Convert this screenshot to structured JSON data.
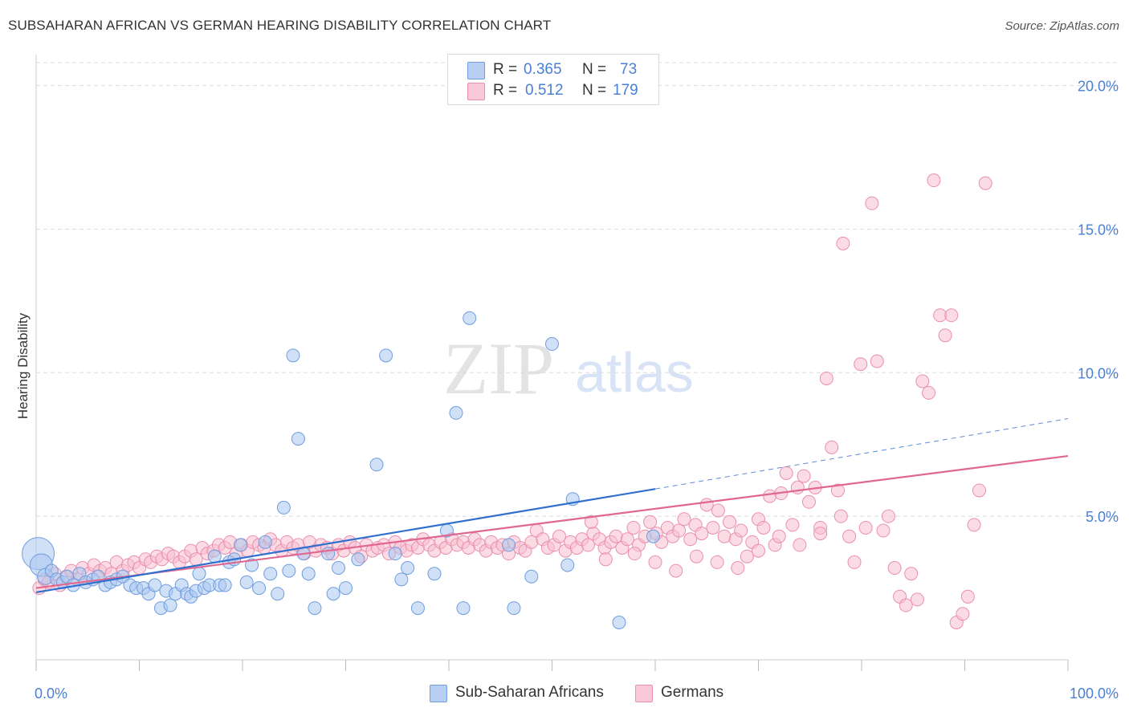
{
  "title": "SUBSAHARAN AFRICAN VS GERMAN HEARING DISABILITY CORRELATION CHART",
  "source": "Source: ZipAtlas.com",
  "watermark": {
    "zip": "ZIP",
    "atlas": "atlas"
  },
  "legend": {
    "rows": [
      {
        "r_label": "R =",
        "r_value": "0.365",
        "n_label": "N =",
        "n_value": "73"
      },
      {
        "r_label": "R =",
        "r_value": "0.512",
        "n_label": "N =",
        "n_value": "179"
      }
    ]
  },
  "bottom_legend": [
    "Sub-Saharan Africans",
    "Germans"
  ],
  "colors": {
    "blue_fill": "#a9c6ee",
    "blue_stroke": "#6f9ddf",
    "blue_line": "#2f6fcf",
    "pink_fill": "#f7bfd0",
    "pink_stroke": "#ea8fae",
    "pink_line": "#e0678f",
    "axis_text": "#4a7fd4",
    "grid": "#dcdcdc"
  },
  "chart_data": {
    "type": "scatter",
    "title": "SUBSAHARAN AFRICAN VS GERMAN HEARING DISABILITY CORRELATION CHART",
    "xlabel": "",
    "ylabel": "Hearing Disability",
    "xlim": [
      0,
      100
    ],
    "ylim": [
      0,
      20.8
    ],
    "x_tick_labels": [
      "0.0%",
      "100.0%"
    ],
    "y_ticks": [
      5,
      10,
      15,
      20
    ],
    "y_tick_labels": [
      "5.0%",
      "10.0%",
      "15.0%",
      "20.0%"
    ],
    "grid": "horizontal dashed",
    "series": [
      {
        "name": "Sub-Saharan Africans",
        "r": 0.365,
        "n": 73,
        "trend": {
          "x0": 0,
          "y0": 2.35,
          "x1": 60,
          "y1": 5.95,
          "dashed_to_x": 100,
          "dashed_to_y": 8.4
        },
        "points": [
          [
            0.2,
            3.7,
            1
          ],
          [
            0.5,
            3.3,
            0.7
          ],
          [
            0.9,
            2.9,
            0.5
          ],
          [
            1.5,
            3.1,
            0.4
          ],
          [
            2.0,
            2.8,
            0.4
          ],
          [
            2.6,
            2.7,
            0.4
          ],
          [
            3.0,
            2.9,
            0.4
          ],
          [
            3.6,
            2.6,
            0.4
          ],
          [
            4.2,
            3.0,
            0.4
          ],
          [
            4.8,
            2.7,
            0.4
          ],
          [
            5.5,
            2.8,
            0.4
          ],
          [
            6.0,
            2.9,
            0.4
          ],
          [
            6.7,
            2.6,
            0.4
          ],
          [
            7.2,
            2.7,
            0.4
          ],
          [
            7.8,
            2.8,
            0.4
          ],
          [
            8.4,
            2.9,
            0.4
          ],
          [
            9.1,
            2.6,
            0.4
          ],
          [
            9.7,
            2.5,
            0.4
          ],
          [
            10.4,
            2.5,
            0.4
          ],
          [
            10.9,
            2.3,
            0.4
          ],
          [
            11.5,
            2.6,
            0.4
          ],
          [
            12.1,
            1.8,
            0.4
          ],
          [
            12.6,
            2.4,
            0.4
          ],
          [
            13.0,
            1.9,
            0.4
          ],
          [
            13.5,
            2.3,
            0.4
          ],
          [
            14.1,
            2.6,
            0.4
          ],
          [
            14.6,
            2.3,
            0.4
          ],
          [
            15.0,
            2.2,
            0.4
          ],
          [
            15.5,
            2.4,
            0.4
          ],
          [
            15.8,
            3.0,
            0.4
          ],
          [
            16.3,
            2.5,
            0.4
          ],
          [
            16.8,
            2.6,
            0.4
          ],
          [
            17.3,
            3.6,
            0.4
          ],
          [
            17.8,
            2.6,
            0.4
          ],
          [
            18.3,
            2.6,
            0.4
          ],
          [
            18.7,
            3.4,
            0.4
          ],
          [
            19.2,
            3.5,
            0.4
          ],
          [
            19.8,
            4.0,
            0.4
          ],
          [
            20.4,
            2.7,
            0.4
          ],
          [
            20.9,
            3.3,
            0.4
          ],
          [
            21.6,
            2.5,
            0.4
          ],
          [
            22.2,
            4.1,
            0.4
          ],
          [
            22.7,
            3.0,
            0.4
          ],
          [
            23.4,
            2.3,
            0.4
          ],
          [
            24.0,
            5.3,
            0.4
          ],
          [
            24.5,
            3.1,
            0.4
          ],
          [
            24.9,
            10.6,
            0.4
          ],
          [
            25.4,
            7.7,
            0.4
          ],
          [
            25.9,
            3.7,
            0.4
          ],
          [
            26.4,
            3.0,
            0.4
          ],
          [
            27.0,
            1.8,
            0.4
          ],
          [
            28.3,
            3.7,
            0.4
          ],
          [
            28.8,
            2.3,
            0.4
          ],
          [
            29.3,
            3.2,
            0.4
          ],
          [
            30.0,
            2.5,
            0.4
          ],
          [
            31.2,
            3.5,
            0.4
          ],
          [
            33.0,
            6.8,
            0.4
          ],
          [
            33.9,
            10.6,
            0.4
          ],
          [
            34.8,
            3.7,
            0.4
          ],
          [
            35.4,
            2.8,
            0.4
          ],
          [
            36.0,
            3.2,
            0.4
          ],
          [
            37.0,
            1.8,
            0.4
          ],
          [
            38.6,
            3.0,
            0.4
          ],
          [
            39.8,
            4.5,
            0.4
          ],
          [
            40.7,
            8.6,
            0.4
          ],
          [
            42.0,
            11.9,
            0.4
          ],
          [
            41.4,
            1.8,
            0.4
          ],
          [
            45.8,
            4.0,
            0.4
          ],
          [
            46.3,
            1.8,
            0.4
          ],
          [
            48.0,
            2.9,
            0.4
          ],
          [
            50.0,
            11.0,
            0.4
          ],
          [
            51.5,
            3.3,
            0.4
          ],
          [
            52.0,
            5.6,
            0.4
          ],
          [
            56.5,
            1.3,
            0.4
          ],
          [
            59.8,
            4.3,
            0.4
          ]
        ]
      },
      {
        "name": "Germans",
        "r": 0.512,
        "n": 179,
        "trend": {
          "x0": 0,
          "y0": 2.5,
          "x1": 100,
          "y1": 7.1
        },
        "points": [
          [
            0.3,
            2.5
          ],
          [
            0.8,
            2.8
          ],
          [
            1.2,
            2.7
          ],
          [
            1.8,
            3.0
          ],
          [
            2.3,
            2.6
          ],
          [
            2.9,
            2.9
          ],
          [
            3.4,
            3.1
          ],
          [
            4.0,
            2.8
          ],
          [
            4.5,
            3.2
          ],
          [
            5.1,
            3.0
          ],
          [
            5.6,
            3.3
          ],
          [
            6.2,
            3.1
          ],
          [
            6.7,
            3.2
          ],
          [
            7.3,
            3.0
          ],
          [
            7.8,
            3.4
          ],
          [
            8.4,
            3.1
          ],
          [
            8.9,
            3.3
          ],
          [
            9.5,
            3.4
          ],
          [
            10.0,
            3.2
          ],
          [
            10.6,
            3.5
          ],
          [
            11.1,
            3.4
          ],
          [
            11.7,
            3.6
          ],
          [
            12.2,
            3.5
          ],
          [
            12.8,
            3.7
          ],
          [
            13.3,
            3.6
          ],
          [
            13.9,
            3.4
          ],
          [
            14.4,
            3.6
          ],
          [
            15.0,
            3.8
          ],
          [
            15.5,
            3.5
          ],
          [
            16.1,
            3.9
          ],
          [
            16.6,
            3.7
          ],
          [
            17.2,
            3.8
          ],
          [
            17.7,
            4.0
          ],
          [
            18.3,
            3.9
          ],
          [
            18.8,
            4.1
          ],
          [
            19.4,
            3.7
          ],
          [
            19.9,
            4.0
          ],
          [
            20.5,
            3.8
          ],
          [
            21.0,
            4.1
          ],
          [
            21.6,
            4.0
          ],
          [
            22.1,
            3.9
          ],
          [
            22.7,
            4.2
          ],
          [
            23.2,
            4.0
          ],
          [
            23.8,
            3.8
          ],
          [
            24.3,
            4.1
          ],
          [
            24.9,
            3.9
          ],
          [
            25.4,
            4.0
          ],
          [
            26.0,
            3.7
          ],
          [
            26.5,
            4.1
          ],
          [
            27.1,
            3.8
          ],
          [
            27.6,
            4.0
          ],
          [
            28.2,
            3.9
          ],
          [
            28.7,
            3.7
          ],
          [
            29.3,
            4.0
          ],
          [
            29.8,
            3.8
          ],
          [
            30.4,
            4.1
          ],
          [
            30.9,
            3.9
          ],
          [
            31.5,
            3.6
          ],
          [
            32.0,
            4.0
          ],
          [
            32.6,
            3.8
          ],
          [
            33.1,
            3.9
          ],
          [
            33.7,
            4.0
          ],
          [
            34.2,
            3.7
          ],
          [
            34.8,
            4.1
          ],
          [
            35.3,
            3.9
          ],
          [
            35.9,
            3.8
          ],
          [
            36.4,
            4.0
          ],
          [
            37.0,
            3.9
          ],
          [
            37.5,
            4.2
          ],
          [
            38.1,
            4.0
          ],
          [
            38.6,
            3.8
          ],
          [
            39.2,
            4.1
          ],
          [
            39.7,
            3.9
          ],
          [
            40.3,
            4.2
          ],
          [
            40.8,
            4.0
          ],
          [
            41.4,
            4.1
          ],
          [
            41.9,
            3.9
          ],
          [
            42.5,
            4.2
          ],
          [
            43.0,
            4.0
          ],
          [
            43.6,
            3.8
          ],
          [
            44.1,
            4.1
          ],
          [
            44.7,
            3.9
          ],
          [
            45.2,
            4.0
          ],
          [
            45.8,
            3.7
          ],
          [
            46.3,
            4.1
          ],
          [
            46.9,
            3.9
          ],
          [
            47.4,
            3.8
          ],
          [
            48.0,
            4.1
          ],
          [
            48.5,
            4.5
          ],
          [
            49.1,
            4.2
          ],
          [
            49.6,
            3.9
          ],
          [
            50.2,
            4.0
          ],
          [
            50.7,
            4.3
          ],
          [
            51.3,
            3.8
          ],
          [
            51.8,
            4.1
          ],
          [
            52.4,
            3.9
          ],
          [
            52.9,
            4.2
          ],
          [
            53.5,
            4.0
          ],
          [
            54.0,
            4.4
          ],
          [
            54.6,
            4.2
          ],
          [
            55.1,
            3.9
          ],
          [
            55.7,
            4.1
          ],
          [
            56.2,
            4.3
          ],
          [
            56.8,
            3.9
          ],
          [
            57.3,
            4.2
          ],
          [
            57.9,
            4.6
          ],
          [
            58.4,
            4.0
          ],
          [
            59.0,
            4.3
          ],
          [
            59.5,
            4.8
          ],
          [
            60.1,
            4.4
          ],
          [
            60.6,
            4.1
          ],
          [
            61.2,
            4.6
          ],
          [
            61.7,
            4.3
          ],
          [
            62.3,
            4.5
          ],
          [
            62.8,
            4.9
          ],
          [
            63.4,
            4.2
          ],
          [
            63.9,
            4.7
          ],
          [
            64.5,
            4.4
          ],
          [
            65.0,
            5.4
          ],
          [
            65.6,
            4.6
          ],
          [
            66.1,
            5.2
          ],
          [
            66.7,
            4.3
          ],
          [
            67.2,
            4.8
          ],
          [
            67.8,
            4.2
          ],
          [
            68.3,
            4.5
          ],
          [
            68.9,
            3.6
          ],
          [
            69.4,
            4.1
          ],
          [
            70.0,
            4.9
          ],
          [
            70.5,
            4.6
          ],
          [
            71.1,
            5.7
          ],
          [
            71.6,
            4.0
          ],
          [
            72.2,
            5.8
          ],
          [
            72.7,
            6.5
          ],
          [
            73.3,
            4.7
          ],
          [
            73.8,
            6.0
          ],
          [
            74.4,
            6.4
          ],
          [
            74.9,
            5.5
          ],
          [
            75.5,
            6.0
          ],
          [
            76.0,
            4.6
          ],
          [
            76.6,
            9.8
          ],
          [
            77.1,
            7.4
          ],
          [
            77.7,
            5.9
          ],
          [
            78.2,
            14.5
          ],
          [
            78.8,
            4.3
          ],
          [
            79.3,
            3.4
          ],
          [
            79.9,
            10.3
          ],
          [
            80.4,
            4.6
          ],
          [
            81.0,
            15.9
          ],
          [
            81.5,
            10.4
          ],
          [
            82.1,
            4.5
          ],
          [
            82.6,
            5.0
          ],
          [
            83.2,
            3.2
          ],
          [
            83.7,
            2.2
          ],
          [
            84.3,
            1.9
          ],
          [
            84.8,
            3.0
          ],
          [
            85.4,
            2.1
          ],
          [
            85.9,
            9.7
          ],
          [
            86.5,
            9.3
          ],
          [
            87.0,
            16.7
          ],
          [
            87.6,
            12.0
          ],
          [
            88.1,
            11.3
          ],
          [
            88.7,
            12.0
          ],
          [
            89.2,
            1.3
          ],
          [
            89.8,
            1.6
          ],
          [
            90.3,
            2.2
          ],
          [
            90.9,
            4.7
          ],
          [
            91.4,
            5.9
          ],
          [
            92.0,
            16.6
          ],
          [
            53.8,
            4.8
          ],
          [
            55.2,
            3.5
          ],
          [
            58.0,
            3.7
          ],
          [
            60.0,
            3.4
          ],
          [
            62.0,
            3.1
          ],
          [
            64.0,
            3.6
          ],
          [
            66.0,
            3.4
          ],
          [
            68.0,
            3.2
          ],
          [
            70.0,
            3.8
          ],
          [
            72.0,
            4.3
          ],
          [
            74.0,
            4.0
          ],
          [
            76.0,
            4.4
          ],
          [
            78.0,
            5.0
          ]
        ]
      }
    ]
  }
}
